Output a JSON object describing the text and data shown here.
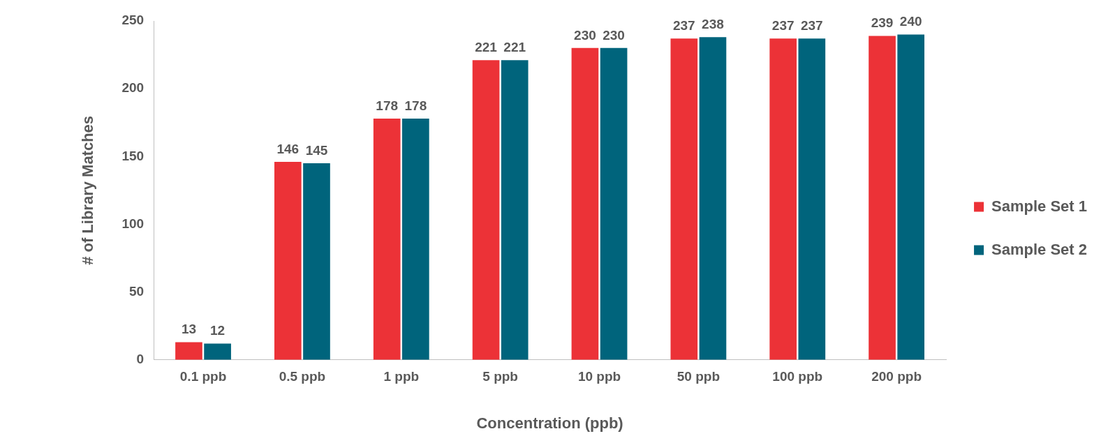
{
  "chart_data": {
    "type": "bar",
    "xlabel": "Concentration (ppb)",
    "ylabel": "# of Library Matches",
    "categories": [
      "0.1 ppb",
      "0.5 ppb",
      "1 ppb",
      "5 ppb",
      "10 ppb",
      "50 ppb",
      "100 ppb",
      "200 ppb"
    ],
    "series": [
      {
        "name": "Sample Set 1",
        "color": "#ec3237",
        "values": [
          13,
          146,
          178,
          221,
          230,
          237,
          237,
          239
        ]
      },
      {
        "name": "Sample Set 2",
        "color": "#00647c",
        "values": [
          12,
          145,
          178,
          221,
          230,
          238,
          237,
          240
        ]
      }
    ],
    "ylim": [
      0,
      250
    ],
    "yticks": [
      0,
      50,
      100,
      150,
      200,
      250
    ],
    "grid": false,
    "legend": "right",
    "data_labels": true
  }
}
